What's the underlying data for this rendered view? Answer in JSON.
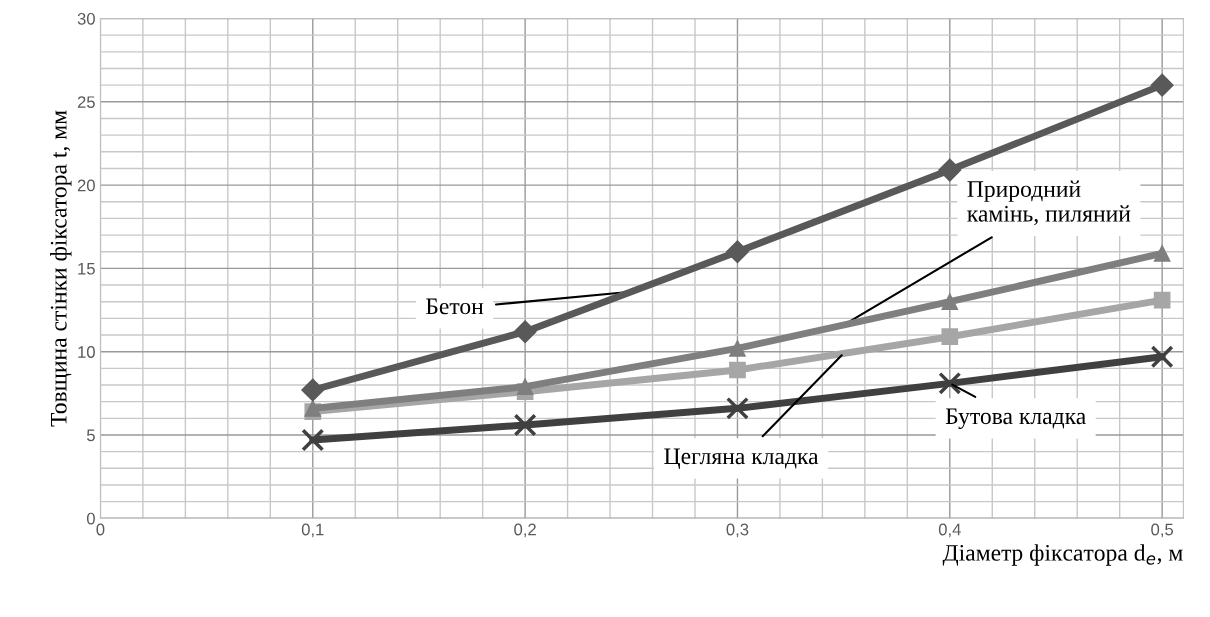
{
  "chart_data": {
    "type": "line",
    "xlabel": "Діаметр фіксатора d$_{e}$, м",
    "ylabel": "Товщина стінки фіксатора t, мм",
    "x": [
      0.1,
      0.2,
      0.3,
      0.4,
      0.5
    ],
    "series": [
      {
        "name": "Бетон",
        "color": "#595959",
        "marker": "diamond",
        "values": [
          7.7,
          11.2,
          16.0,
          20.9,
          26.0
        ]
      },
      {
        "name": "Природний\nкамінь, пиляний",
        "color": "#7f7f7f",
        "marker": "triangle",
        "values": [
          6.6,
          7.9,
          10.2,
          13.0,
          15.9
        ]
      },
      {
        "name": "Цегляна кладка",
        "color": "#a6a6a6",
        "marker": "square",
        "values": [
          6.4,
          7.6,
          8.9,
          10.9,
          13.1
        ]
      },
      {
        "name": "Бутова кладка",
        "color": "#404040",
        "marker": "cross",
        "values": [
          4.7,
          5.6,
          6.6,
          8.1,
          9.7
        ]
      }
    ],
    "xlim": [
      0,
      0.51
    ],
    "ylim": [
      0,
      30
    ],
    "xticks": [
      0,
      {
        "value": 0.1,
        "label": "0,1"
      },
      {
        "value": 0.2,
        "label": "0,2"
      },
      {
        "value": 0.3,
        "label": "0,3"
      },
      {
        "value": 0.4,
        "label": "0,4"
      },
      {
        "value": 0.5,
        "label": "0,5"
      }
    ],
    "yticks": [
      0,
      5,
      10,
      15,
      20,
      25,
      30
    ],
    "grid": true,
    "legend": false,
    "line_style": "solid"
  }
}
